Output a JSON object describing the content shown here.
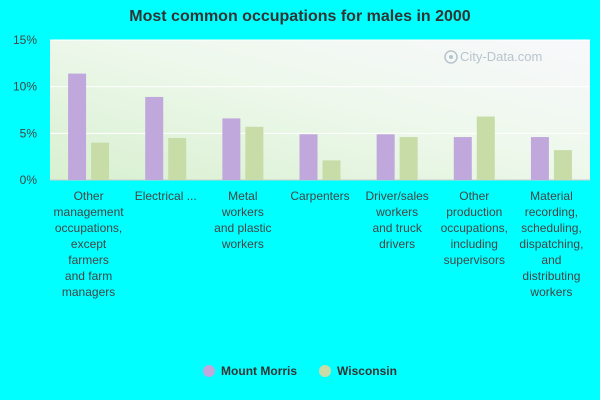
{
  "chart_data": {
    "type": "bar",
    "title": "Most common occupations for males in 2000",
    "categories": [
      "Other management occupations, except farmers and farm managers",
      "Electrical ...",
      "Metal workers and plastic workers",
      "Carpenters",
      "Driver/sales workers and truck drivers",
      "Other production occupations, including supervisors",
      "Material recording, scheduling, dispatching, and distributing workers"
    ],
    "category_lines": [
      [
        "Other",
        "management",
        "occupations,",
        "except",
        "farmers",
        "and farm",
        "managers"
      ],
      [
        "Electrical ..."
      ],
      [
        "Metal",
        "workers",
        "and plastic",
        "workers"
      ],
      [
        "Carpenters"
      ],
      [
        "Driver/sales",
        "workers",
        "and truck",
        "drivers"
      ],
      [
        "Other",
        "production",
        "occupations,",
        "including",
        "supervisors"
      ],
      [
        "Material",
        "recording,",
        "scheduling,",
        "dispatching,",
        "and",
        "distributing",
        "workers"
      ]
    ],
    "series": [
      {
        "name": "Mount Morris",
        "color": "#c0a8dc",
        "values": [
          11.4,
          8.9,
          6.6,
          4.9,
          4.9,
          4.6,
          4.6
        ]
      },
      {
        "name": "Wisconsin",
        "color": "#c8dca8",
        "values": [
          4.0,
          4.5,
          5.7,
          2.1,
          4.6,
          6.8,
          3.2
        ]
      }
    ],
    "y_ticks": [
      "0%",
      "5%",
      "10%",
      "15%"
    ],
    "ylim": [
      0,
      15
    ],
    "legend_position": "bottom",
    "grid": true
  },
  "watermark": "City-Data.com"
}
